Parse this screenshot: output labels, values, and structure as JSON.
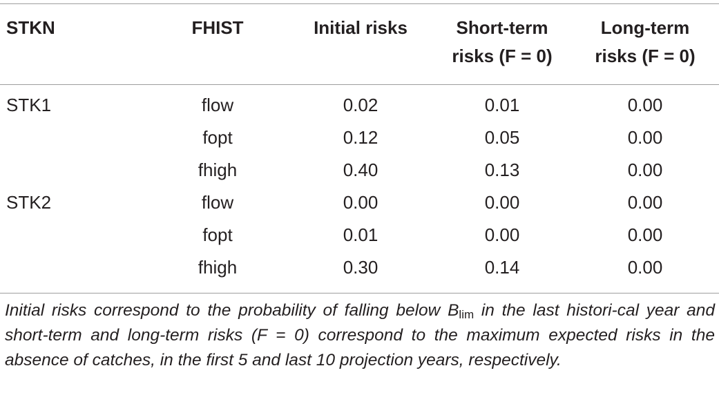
{
  "table": {
    "headers": {
      "stkn": "STKN",
      "fhist": "FHIST",
      "initial": "Initial risks",
      "short_line1": "Short-term",
      "short_line2": "risks (F = 0)",
      "long_line1": "Long-term",
      "long_line2": "risks (F = 0)"
    },
    "rows": [
      {
        "stkn": "STK1",
        "fhist": "flow",
        "initial": "0.02",
        "short": "0.01",
        "long": "0.00"
      },
      {
        "stkn": "",
        "fhist": "fopt",
        "initial": "0.12",
        "short": "0.05",
        "long": "0.00"
      },
      {
        "stkn": "",
        "fhist": "fhigh",
        "initial": "0.40",
        "short": "0.13",
        "long": "0.00"
      },
      {
        "stkn": "STK2",
        "fhist": "flow",
        "initial": "0.00",
        "short": "0.00",
        "long": "0.00"
      },
      {
        "stkn": "",
        "fhist": "fopt",
        "initial": "0.01",
        "short": "0.00",
        "long": "0.00"
      },
      {
        "stkn": "",
        "fhist": "fhigh",
        "initial": "0.30",
        "short": "0.14",
        "long": "0.00"
      }
    ]
  },
  "footnote": {
    "part1": "Initial risks correspond to the probability of falling below B",
    "subscript": "lim",
    "part2": " in the last histori-cal year and short-term and long-term risks (F = 0) correspond to the maximum expected risks in the absence of catches, in the first 5 and last 10 projection years, respectively."
  }
}
